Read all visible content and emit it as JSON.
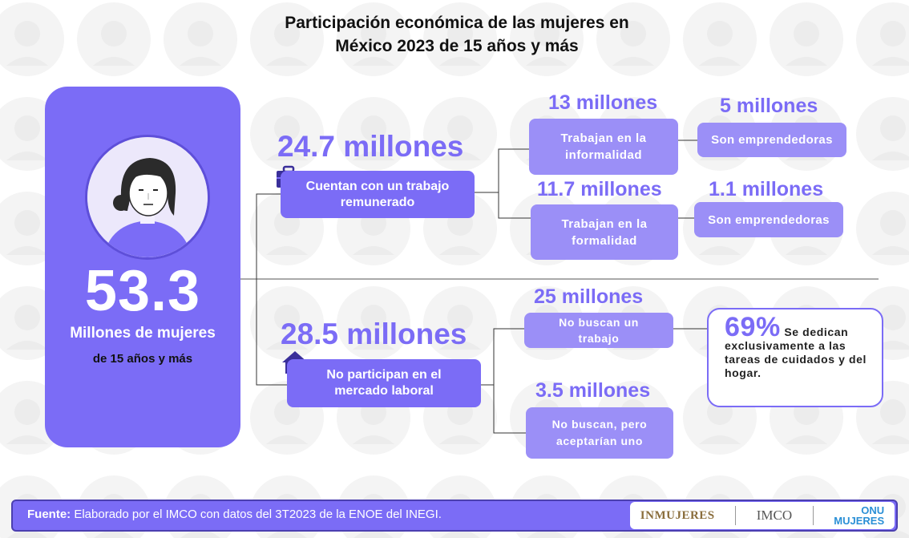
{
  "title": {
    "line1": "Participación económica de las mujeres en",
    "line2": "México 2023 de 15 años y más"
  },
  "total": {
    "value": "53.3",
    "label": "Millones  de mujeres",
    "sublabel": "de 15 años y más"
  },
  "paid": {
    "amount": "24.7 millones",
    "label": "Cuentan con un trabajo remunerado",
    "icon": "briefcase-icon",
    "informal": {
      "amount": "13 millones",
      "label": "Trabajan  en la informalidad",
      "entrepreneurs_amount": "5 millones",
      "entrepreneurs_label": "Son emprendedoras"
    },
    "formal": {
      "amount": "11.7 millones",
      "label": "Trabajan  en la formalidad",
      "entrepreneurs_amount": "1.1 millones",
      "entrepreneurs_label": "Son emprendedoras"
    }
  },
  "not_participating": {
    "amount": "28.5 millones",
    "label": "No participan en el mercado laboral",
    "icon": "house-icon",
    "not_seeking": {
      "amount": "25 millones",
      "label": "No buscan  un trabajo",
      "percent": "69%",
      "percent_text": "Se dedican exclusivamente a las tareas de cuidados y del hogar."
    },
    "would_accept": {
      "amount": "3.5 millones",
      "label": "No buscan,  pero aceptarían  uno"
    }
  },
  "footer": {
    "source_label": "Fuente:",
    "source_text": " Elaborado por el IMCO con datos del 3T2023 de la ENOE del INEGI.",
    "logo1": "INMUJERES",
    "logo2": "IMCO",
    "logo3_top": "ONU",
    "logo3_bottom": "MUJERES"
  },
  "colors": {
    "primary": "#7b6cf6",
    "light": "#9b8ff7",
    "pattern": "#f3f3f3"
  }
}
